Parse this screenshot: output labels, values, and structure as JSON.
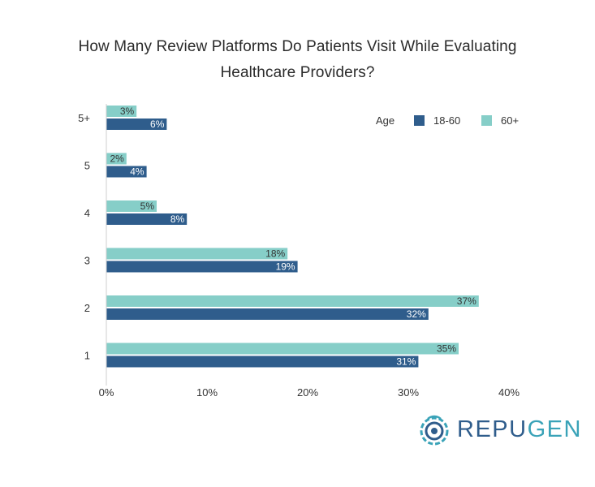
{
  "title_line1": "How Many Review Platforms Do Patients Visit While Evaluating",
  "title_line2": "Healthcare Providers?",
  "legend": {
    "title": "Age"
  },
  "brand": {
    "part1": "REPU",
    "part2": "GEN"
  },
  "colors": {
    "series_18_60": "#2f5d8c",
    "series_60_plus": "#86cec8",
    "axis": "#cfcfcf"
  },
  "chart_data": {
    "type": "bar",
    "orientation": "horizontal",
    "categories": [
      "5+",
      "5",
      "4",
      "3",
      "2",
      "1"
    ],
    "series": [
      {
        "name": "18-60",
        "values": [
          6,
          4,
          8,
          19,
          32,
          31
        ],
        "color": "#2f5d8c"
      },
      {
        "name": "60+",
        "values": [
          3,
          2,
          5,
          18,
          37,
          35
        ],
        "color": "#86cec8"
      }
    ],
    "xlim": [
      0,
      40
    ],
    "xticks": [
      0,
      10,
      20,
      30,
      40
    ],
    "tick_format": "%",
    "legend_position": "top-right",
    "grid": false
  }
}
